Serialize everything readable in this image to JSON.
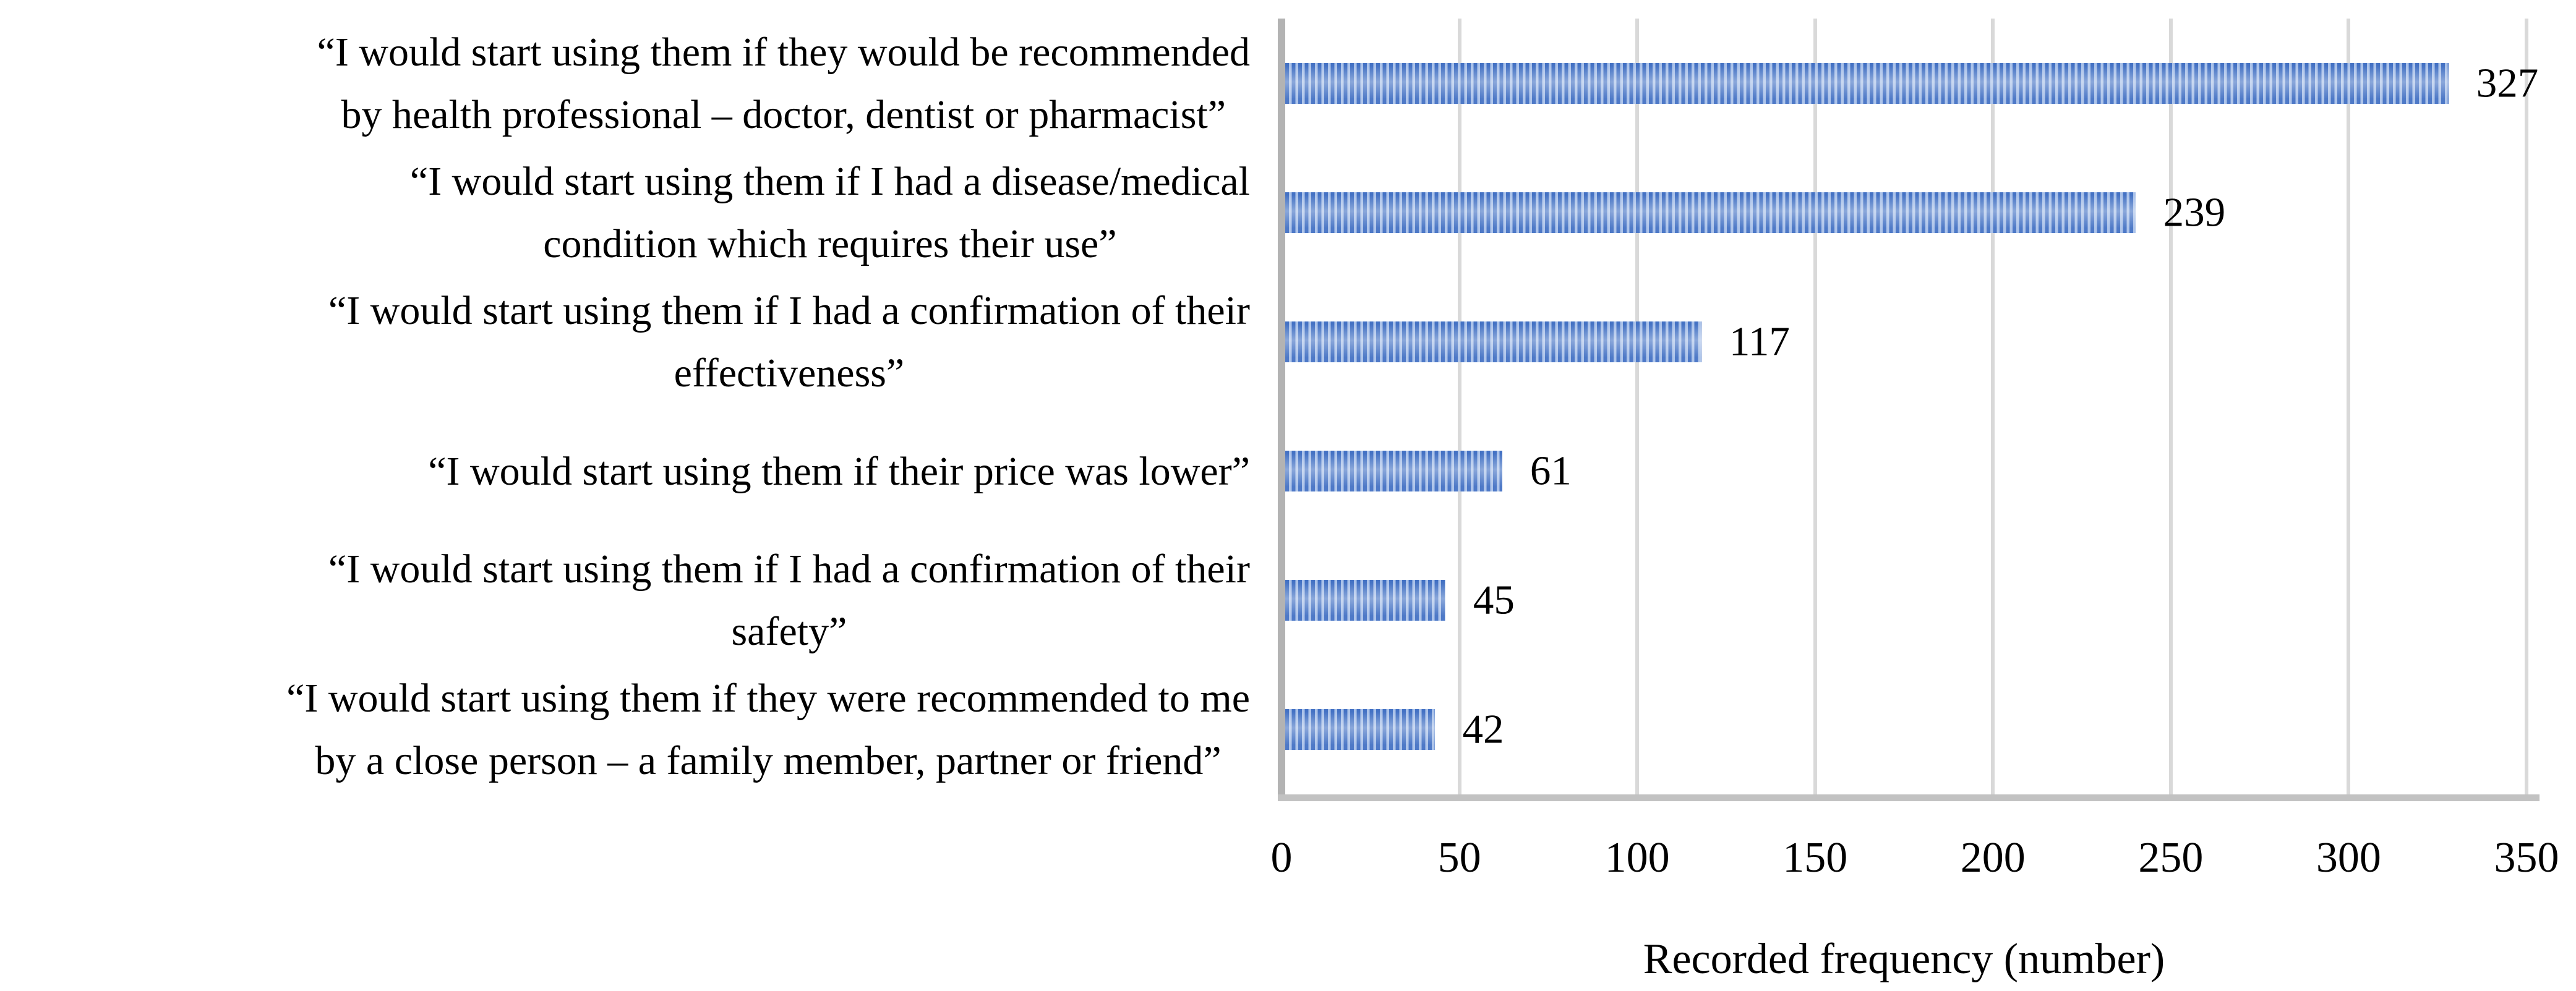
{
  "chart_data": {
    "type": "bar",
    "orientation": "horizontal",
    "title": "",
    "xlabel": "Recorded frequency (number)",
    "ylabel": "",
    "xlim": [
      0,
      350
    ],
    "xticks": [
      0,
      50,
      100,
      150,
      200,
      250,
      300,
      350
    ],
    "grid": "vertical gridlines on",
    "legend": "none",
    "bar_pattern": "blue vertical stripe fill",
    "categories": [
      "“I would start using them if they would be recommended by health professional – doctor, dentist or pharmacist”",
      "“I would start using them if I had a disease/medical condition which requires their use”",
      "“I would start using them if I had a confirmation of their effectiveness”",
      "“I would start using them if their price was lower”",
      "“I would start using them if I had a confirmation of their safety”",
      "“I would start using them if they were recommended to me by a close person – a family member, partner or friend”"
    ],
    "values": [
      327,
      239,
      117,
      61,
      45,
      42
    ]
  },
  "chart": {
    "rows": [
      {
        "label": "“I would start using them if they would be recommended\nby health professional – doctor, dentist or pharmacist”",
        "value": "327"
      },
      {
        "label": "“I would start using them if I had a disease/medical\ncondition which requires their use”",
        "value": "239"
      },
      {
        "label": "“I would start using them if I had a confirmation of their\neffectiveness”",
        "value": "117"
      },
      {
        "label": "“I would start using them if their price was lower”",
        "value": "61"
      },
      {
        "label": "“I would start using them if I had a confirmation of their\nsafety”",
        "value": "45"
      },
      {
        "label": "“I would start using them if they were recommended to me\nby a close person – a family member, partner or friend”",
        "value": "42"
      }
    ],
    "x_axis": {
      "ticks": [
        "0",
        "50",
        "100",
        "150",
        "200",
        "250",
        "300",
        "350"
      ],
      "title": "Recorded frequency (number)"
    },
    "colors": {
      "bar_stripe_dark": "#4472c4",
      "bar_stripe_light": "#a9c1e9",
      "gridline": "#d9d9d9",
      "axis_line": "#bfbfbf",
      "text": "#000000"
    }
  }
}
